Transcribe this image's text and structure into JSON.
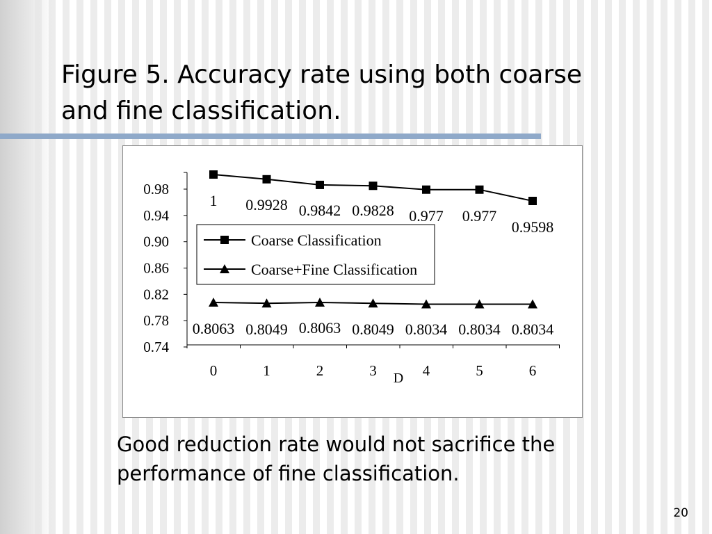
{
  "slide": {
    "title_line1": "Figure 5. Accuracy rate using both coarse",
    "title_line2": "and fine classification.",
    "caption_line1": "Good reduction rate would not sacrifice the",
    "caption_line2": "performance of fine classification.",
    "page_number": "20",
    "colors": {
      "rule": "#8fa9c9",
      "text": "#000000"
    }
  },
  "chart_data": {
    "type": "line",
    "x": [
      0,
      1,
      2,
      3,
      4,
      5,
      6
    ],
    "x_tick_labels": [
      "0",
      "1",
      "2",
      "3",
      "4",
      "5",
      "6"
    ],
    "y_tick_labels": [
      "0.98",
      "0.94",
      "0.90",
      "0.86",
      "0.82",
      "0.78",
      "0.74"
    ],
    "xlabel": "D",
    "ylabel": "",
    "ylim": [
      0.74,
      1.0
    ],
    "grid": false,
    "legend_position": "center-left",
    "series": [
      {
        "name": "Coarse Classification",
        "marker": "square",
        "values": [
          1,
          0.9928,
          0.9842,
          0.9828,
          0.977,
          0.977,
          0.9598
        ],
        "labels": [
          "1",
          "0.9928",
          "0.9842",
          "0.9828",
          "0.977",
          "0.977",
          "0.9598"
        ]
      },
      {
        "name": "Coarse+Fine Classification",
        "marker": "triangle",
        "values": [
          0.8063,
          0.8049,
          0.8063,
          0.8049,
          0.8034,
          0.8034,
          0.8034
        ],
        "labels": [
          "0.8063",
          "0.8049",
          "0.8063",
          "0.8049",
          "0.8034",
          "0.8034",
          "0.8034"
        ]
      }
    ]
  }
}
